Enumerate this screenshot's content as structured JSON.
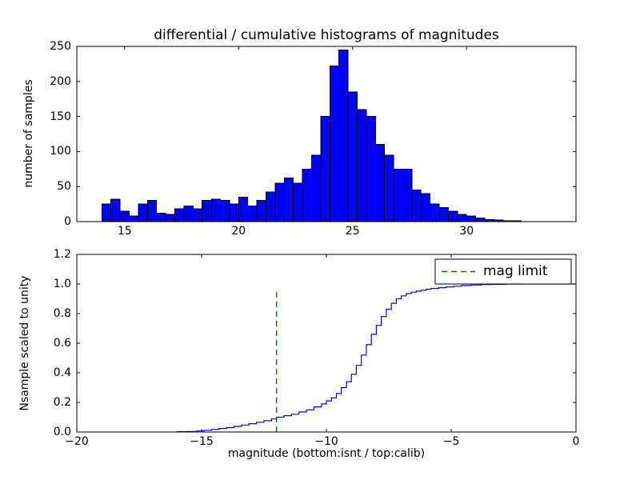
{
  "colors": {
    "background": "#ffffff",
    "frame": "#000000",
    "bar_fill": "#0000ff",
    "bar_edge": "#000000",
    "step_line": "#0000ff",
    "mag_limit_line": "#008000",
    "legend_border": "#000000",
    "legend_background": "#ffffff"
  },
  "chart_data": [
    {
      "type": "bar",
      "title": "differential / cumulative histograms of magnitudes",
      "ylabel": "number of samples",
      "xlabel": "",
      "bins": {
        "start": 14.0,
        "width": 0.4
      },
      "values": [
        25,
        32,
        15,
        8,
        25,
        30,
        12,
        10,
        18,
        22,
        18,
        30,
        32,
        30,
        25,
        35,
        22,
        30,
        42,
        55,
        62,
        55,
        75,
        95,
        150,
        222,
        245,
        185,
        160,
        150,
        110,
        95,
        75,
        75,
        45,
        40,
        25,
        20,
        15,
        10,
        8,
        5,
        3,
        2,
        1,
        1
      ],
      "xlim": [
        12.9,
        34.8
      ],
      "ylim": [
        0,
        250
      ],
      "xticks": [
        15,
        20,
        25,
        30
      ],
      "xticklabels": [
        "15",
        "20",
        "25",
        "30"
      ],
      "yticks": [
        0,
        50,
        100,
        150,
        200,
        250
      ],
      "yticklabels": [
        "0",
        "50",
        "100",
        "150",
        "200",
        "250"
      ],
      "bar_color": "#0000ff",
      "bar_edge_color": "#000000",
      "grid": false,
      "legend": null
    },
    {
      "type": "line",
      "line_style": "step",
      "title": "",
      "ylabel": "Nsample scaled to unity",
      "xlabel": "magnitude (bottom:isnt / top:calib)",
      "xlim": [
        -20,
        0
      ],
      "ylim": [
        0,
        1.2
      ],
      "xticks": [
        -20,
        -15,
        -10,
        -5,
        0
      ],
      "xticklabels": [
        "−20",
        "−15",
        "−10",
        "−5",
        "0"
      ],
      "yticks": [
        0,
        0.2,
        0.4,
        0.6,
        0.8,
        1.0,
        1.2
      ],
      "yticklabels": [
        "0.0",
        "0.2",
        "0.4",
        "0.6",
        "0.8",
        "1.0",
        "1.2"
      ],
      "line_color": "#0000ff",
      "steps": [
        [
          -16.0,
          0.002
        ],
        [
          -15.6,
          0.004
        ],
        [
          -15.2,
          0.007
        ],
        [
          -14.9,
          0.012
        ],
        [
          -14.6,
          0.018
        ],
        [
          -14.3,
          0.024
        ],
        [
          -14.0,
          0.03
        ],
        [
          -13.7,
          0.038
        ],
        [
          -13.4,
          0.047
        ],
        [
          -13.1,
          0.056
        ],
        [
          -12.8,
          0.066
        ],
        [
          -12.5,
          0.076
        ],
        [
          -12.2,
          0.088
        ],
        [
          -12.0,
          0.1
        ],
        [
          -11.7,
          0.11
        ],
        [
          -11.4,
          0.12
        ],
        [
          -11.1,
          0.135
        ],
        [
          -10.8,
          0.15
        ],
        [
          -10.5,
          0.17
        ],
        [
          -10.2,
          0.19
        ],
        [
          -10.0,
          0.21
        ],
        [
          -9.8,
          0.23
        ],
        [
          -9.6,
          0.26
        ],
        [
          -9.4,
          0.3
        ],
        [
          -9.2,
          0.34
        ],
        [
          -9.0,
          0.39
        ],
        [
          -8.8,
          0.45
        ],
        [
          -8.6,
          0.52
        ],
        [
          -8.4,
          0.59
        ],
        [
          -8.2,
          0.66
        ],
        [
          -8.0,
          0.72
        ],
        [
          -7.8,
          0.78
        ],
        [
          -7.6,
          0.83
        ],
        [
          -7.4,
          0.87
        ],
        [
          -7.2,
          0.9
        ],
        [
          -7.0,
          0.92
        ],
        [
          -6.8,
          0.935
        ],
        [
          -6.6,
          0.945
        ],
        [
          -6.4,
          0.952
        ],
        [
          -6.2,
          0.958
        ],
        [
          -6.0,
          0.965
        ],
        [
          -5.8,
          0.97
        ],
        [
          -5.5,
          0.975
        ],
        [
          -5.2,
          0.98
        ],
        [
          -4.9,
          0.985
        ],
        [
          -4.6,
          0.99
        ],
        [
          -4.2,
          0.993
        ],
        [
          -3.8,
          0.996
        ],
        [
          -3.3,
          0.998
        ],
        [
          -2.8,
          0.999
        ],
        [
          -2.2,
          1.0
        ],
        [
          0,
          1.0
        ]
      ],
      "vline": {
        "x": -12,
        "ymin": 0,
        "ymax": 0.95,
        "color": "#008000",
        "linestyle": "dashed"
      },
      "legend": {
        "label": "mag limit",
        "position": "upper right",
        "line_color": "#008000",
        "line_style": "dashed"
      }
    }
  ]
}
